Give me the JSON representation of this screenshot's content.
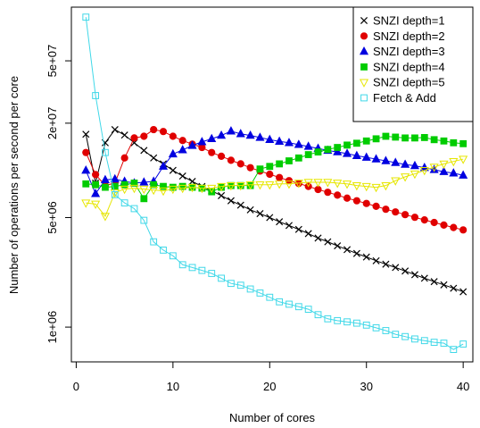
{
  "chart_data": {
    "type": "line",
    "xlabel": "Number of cores",
    "ylabel": "Number of operations per second per core",
    "x_ticks": [
      0,
      10,
      20,
      30,
      40
    ],
    "y_ticks": [
      {
        "value": 1000000,
        "label": "1e+06"
      },
      {
        "value": 5000000,
        "label": "5e+06"
      },
      {
        "value": 20000000,
        "label": "2e+07"
      },
      {
        "value": 50000000,
        "label": "5e+07"
      }
    ],
    "log_y": true,
    "xlim": [
      -0.5,
      41
    ],
    "ylim": [
      600000,
      110000000
    ],
    "legend_position": "top-right",
    "x": [
      1,
      2,
      3,
      4,
      5,
      6,
      7,
      8,
      9,
      10,
      11,
      12,
      13,
      14,
      15,
      16,
      17,
      18,
      19,
      20,
      21,
      22,
      23,
      24,
      25,
      26,
      27,
      28,
      29,
      30,
      31,
      32,
      33,
      34,
      35,
      36,
      37,
      38,
      39,
      40
    ],
    "series": [
      {
        "name": "SNZI depth=1",
        "color": "#000000",
        "marker": "x",
        "values": [
          17000000,
          8300000,
          15000000,
          18200000,
          16800000,
          15000000,
          13400000,
          12000000,
          11000000,
          10000000,
          9200000,
          8500000,
          7900000,
          7400000,
          6900000,
          6400000,
          6000000,
          5600000,
          5300000,
          5000000,
          4700000,
          4450000,
          4200000,
          3950000,
          3700000,
          3500000,
          3300000,
          3120000,
          2950000,
          2800000,
          2650000,
          2520000,
          2400000,
          2280000,
          2160000,
          2050000,
          1950000,
          1860000,
          1770000,
          1680000
        ]
      },
      {
        "name": "SNZI depth=2",
        "color": "#e00000",
        "marker": "circle",
        "values": [
          13000000,
          9400000,
          8000000,
          8300000,
          12000000,
          16100000,
          16500000,
          18200000,
          17700000,
          16500000,
          15500000,
          14700000,
          14000000,
          13000000,
          12300000,
          11600000,
          11000000,
          10400000,
          9900000,
          9450000,
          9000000,
          8600000,
          8250000,
          7900000,
          7550000,
          7250000,
          6950000,
          6650000,
          6400000,
          6150000,
          5900000,
          5650000,
          5430000,
          5220000,
          5020000,
          4830000,
          4650000,
          4480000,
          4320000,
          4170000
        ]
      },
      {
        "name": "SNZI depth=3",
        "color": "#0000e0",
        "marker": "triangle",
        "values": [
          10000000,
          7100000,
          8700000,
          8800000,
          8500000,
          8300000,
          8400000,
          8500000,
          10600000,
          12700000,
          13500000,
          14400000,
          15200000,
          15900000,
          16700000,
          17800000,
          17100000,
          16700000,
          16200000,
          15700000,
          15300000,
          15000000,
          14600000,
          14200000,
          13800000,
          13400000,
          13100000,
          12800000,
          12400000,
          12100000,
          11800000,
          11500000,
          11200000,
          10900000,
          10700000,
          10400000,
          10100000,
          9800000,
          9600000,
          9300000
        ]
      },
      {
        "name": "SNZI depth=4",
        "color": "#00cc00",
        "marker": "square",
        "values": [
          8200000,
          8100000,
          7800000,
          7900000,
          8100000,
          8300000,
          6600000,
          8100000,
          7900000,
          7800000,
          7900000,
          7800000,
          7700000,
          7300000,
          7800000,
          8000000,
          8000000,
          8000000,
          10200000,
          10600000,
          11000000,
          11500000,
          12000000,
          12600000,
          13100000,
          13600000,
          14000000,
          14500000,
          14900000,
          15400000,
          15900000,
          16500000,
          16300000,
          16100000,
          16100000,
          16200000,
          15700000,
          15400000,
          15000000,
          14800000
        ]
      },
      {
        "name": "SNZI depth=5",
        "color": "#e6e600",
        "marker": "triangle-down",
        "values": [
          6200000,
          6100000,
          5100000,
          7200000,
          7600000,
          7700000,
          7600000,
          7500000,
          7400000,
          7600000,
          7700000,
          7800000,
          7700000,
          7700000,
          7900000,
          8000000,
          8000000,
          8100000,
          8100000,
          8100000,
          8200000,
          8200000,
          8300000,
          8400000,
          8400000,
          8400000,
          8300000,
          8200000,
          8000000,
          7900000,
          7800000,
          8000000,
          8600000,
          9100000,
          9500000,
          10000000,
          10500000,
          11000000,
          11400000,
          11800000
        ]
      },
      {
        "name": "Fetch & Add",
        "color": "#40d8e8",
        "marker": "open-square",
        "values": [
          95000000,
          30000000,
          13000000,
          7000000,
          6200000,
          5700000,
          4800000,
          3500000,
          3100000,
          2850000,
          2500000,
          2400000,
          2300000,
          2200000,
          2050000,
          1900000,
          1850000,
          1750000,
          1650000,
          1550000,
          1450000,
          1400000,
          1350000,
          1300000,
          1200000,
          1130000,
          1100000,
          1080000,
          1060000,
          1030000,
          990000,
          950000,
          900000,
          870000,
          840000,
          820000,
          800000,
          790000,
          720000,
          780000
        ]
      }
    ]
  }
}
